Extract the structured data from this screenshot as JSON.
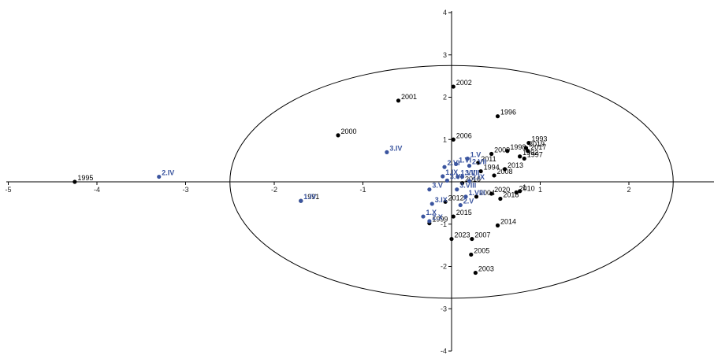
{
  "chart_data": {
    "type": "scatter",
    "title": "",
    "xlabel": "",
    "ylabel": "",
    "xlim": [
      -5,
      2.9
    ],
    "ylim": [
      -4,
      4
    ],
    "x_ticks": [
      -5,
      -4,
      -3,
      -2,
      -1,
      1,
      2
    ],
    "y_ticks": [
      -4,
      -3,
      -2,
      -1,
      1,
      2,
      3,
      4
    ],
    "grid": false,
    "legend": "none",
    "colors": {
      "years": "#000000",
      "supplementary": "#3B559F"
    },
    "ellipse": {
      "center": [
        0,
        0
      ],
      "radii": [
        2.5,
        2.75
      ]
    },
    "series": [
      {
        "points": [
          {
            "label": "1995",
            "x": -4.25,
            "y": 0.0
          },
          {
            "label": "2000",
            "x": -1.28,
            "y": 1.1
          },
          {
            "label": "2001",
            "x": -0.6,
            "y": 1.92
          },
          {
            "label": "2002",
            "x": 0.02,
            "y": 2.25
          },
          {
            "label": "1996",
            "x": 0.52,
            "y": 1.55
          },
          {
            "label": "2006",
            "x": 0.02,
            "y": 1.0
          },
          {
            "label": "1993",
            "x": 0.87,
            "y": 0.92
          },
          {
            "label": "2019",
            "x": 0.84,
            "y": 0.8
          },
          {
            "label": "2017",
            "x": 0.86,
            "y": 0.73
          },
          {
            "label": "1998",
            "x": 0.63,
            "y": 0.73
          },
          {
            "label": "2009",
            "x": 0.45,
            "y": 0.66
          },
          {
            "label": "1992",
            "x": 0.77,
            "y": 0.6
          },
          {
            "label": "1997",
            "x": 0.82,
            "y": 0.55
          },
          {
            "label": "2011",
            "x": 0.3,
            "y": 0.45
          },
          {
            "label": "1994",
            "x": 0.33,
            "y": 0.25
          },
          {
            "label": "2013",
            "x": 0.6,
            "y": 0.3
          },
          {
            "label": "2008",
            "x": 0.48,
            "y": 0.15
          },
          {
            "label": "2016",
            "x": 0.12,
            "y": -0.03
          },
          {
            "label": "2020",
            "x": 0.45,
            "y": -0.28
          },
          {
            "label": "2010",
            "x": 0.73,
            "y": -0.25
          },
          {
            "label": "2004",
            "x": 0.28,
            "y": -0.35
          },
          {
            "label": "2018",
            "x": 0.55,
            "y": -0.4
          },
          {
            "label": "2012",
            "x": -0.07,
            "y": -0.47
          },
          {
            "label": "2015",
            "x": 0.02,
            "y": -0.82
          },
          {
            "label": "2014",
            "x": 0.52,
            "y": -1.03
          },
          {
            "label": "1999",
            "x": -0.25,
            "y": -0.98
          },
          {
            "label": "2023",
            "x": 0.0,
            "y": -1.35
          },
          {
            "label": "2007",
            "x": 0.23,
            "y": -1.35
          },
          {
            "label": "2005",
            "x": 0.22,
            "y": -1.72
          },
          {
            "label": "2003",
            "x": 0.27,
            "y": -2.15
          },
          {
            "label": "1991",
            "x": -1.7,
            "y": -0.45
          },
          {
            "label": "1",
            "x": 0.77,
            "y": -0.22
          }
        ]
      },
      {
        "points": [
          {
            "label": "2.IV",
            "x": -3.3,
            "y": 0.12
          },
          {
            "label": "3.IV",
            "x": -0.73,
            "y": 0.7
          },
          {
            "label": "1.IV",
            "x": -1.7,
            "y": -0.45
          },
          {
            "label": "1.V",
            "x": 0.18,
            "y": 0.55
          },
          {
            "label": "2.VI",
            "x": -0.08,
            "y": 0.35
          },
          {
            "label": "1.VI",
            "x": 0.05,
            "y": 0.42
          },
          {
            "label": "2.VII",
            "x": 0.2,
            "y": 0.38
          },
          {
            "label": "1.IX",
            "x": -0.1,
            "y": 0.13
          },
          {
            "label": "3.VI",
            "x": -0.05,
            "y": 0.03
          },
          {
            "label": "1.VII",
            "x": 0.07,
            "y": 0.12
          },
          {
            "label": "3.VII",
            "x": 0.12,
            "y": 0.12
          },
          {
            "label": "2.IX",
            "x": 0.2,
            "y": 0.02
          },
          {
            "label": "3.V",
            "x": -0.25,
            "y": -0.18
          },
          {
            "label": "3.VIII",
            "x": 0.06,
            "y": -0.18
          },
          {
            "label": "1.VIII",
            "x": 0.16,
            "y": -0.35
          },
          {
            "label": "3.IX",
            "x": -0.22,
            "y": -0.52
          },
          {
            "label": "2.V",
            "x": 0.1,
            "y": -0.55
          },
          {
            "label": "1.X",
            "x": -0.32,
            "y": -0.82
          },
          {
            "label": "2.X",
            "x": -0.25,
            "y": -0.93
          }
        ]
      }
    ]
  }
}
